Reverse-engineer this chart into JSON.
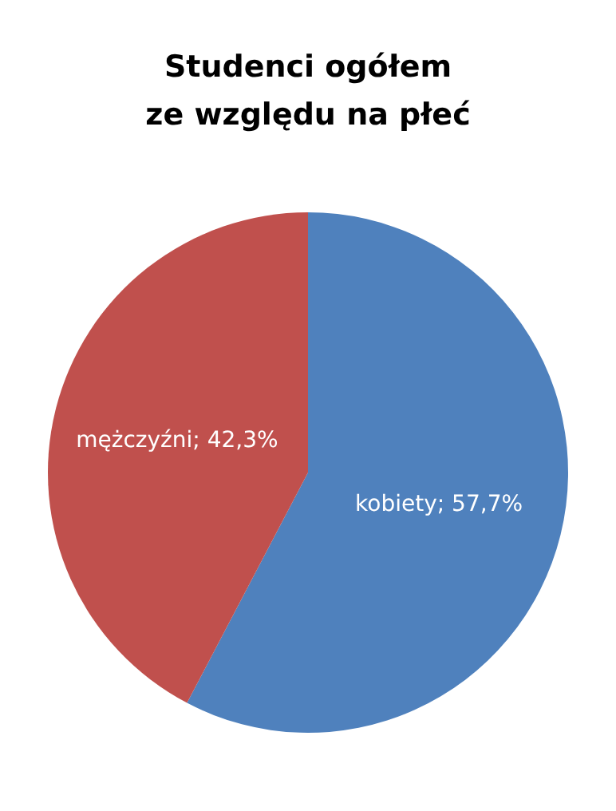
{
  "chart_data": {
    "type": "pie",
    "title": "Studenci ogółem\nze względu na płeć",
    "categories": [
      "kobiety",
      "mężczyźni"
    ],
    "values": [
      57.7,
      42.3
    ],
    "value_labels": [
      "57,7%",
      "42,3%"
    ],
    "colors": [
      "#4f81bd",
      "#c0504d"
    ],
    "legend": false
  }
}
